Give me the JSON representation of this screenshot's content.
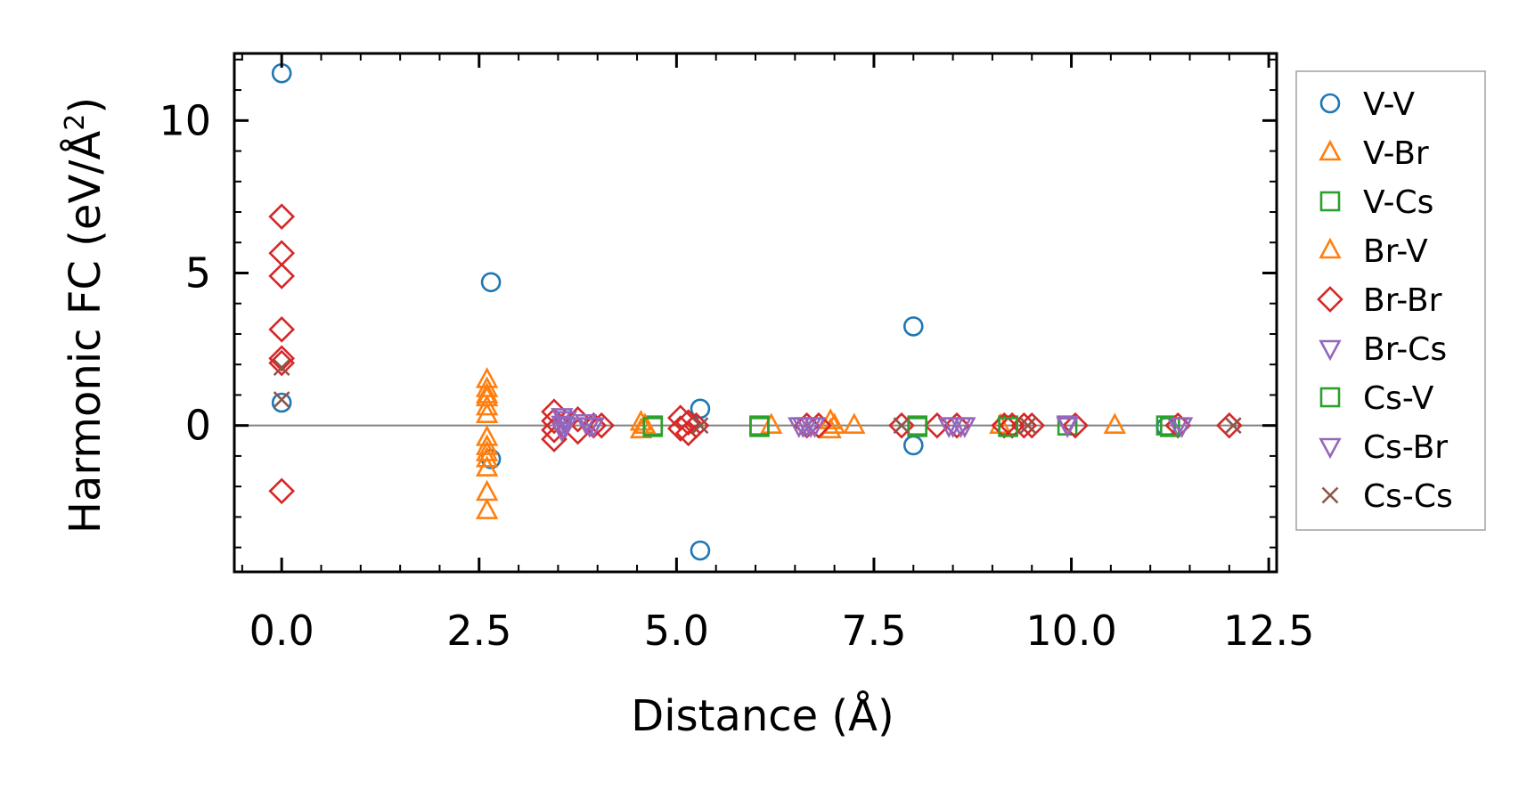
{
  "chart_data": {
    "type": "scatter",
    "title": "",
    "xlabel": "Distance (Å)",
    "ylabel_main": "Harmonic FC (eV/Å",
    "ylabel_sup": "2",
    "ylabel_close": ")",
    "xlim": [
      -0.6,
      12.6
    ],
    "ylim": [
      -4.8,
      12.2
    ],
    "xticks": [
      0.0,
      2.5,
      5.0,
      7.5,
      10.0,
      12.5
    ],
    "xtick_labels": [
      "0.0",
      "2.5",
      "5.0",
      "7.5",
      "10.0",
      "12.5"
    ],
    "yticks": [
      0,
      5,
      10
    ],
    "ytick_labels": [
      "0",
      "5",
      "10"
    ],
    "legend_position": "right-outside",
    "series": [
      {
        "name": "V-V",
        "marker": "circle",
        "color": "#1f77b4",
        "filled": false,
        "points": [
          [
            0.0,
            11.55
          ],
          [
            0.0,
            0.75
          ],
          [
            2.65,
            4.7
          ],
          [
            2.65,
            -1.1
          ],
          [
            5.3,
            0.55
          ],
          [
            5.3,
            -4.1
          ],
          [
            8.0,
            3.25
          ],
          [
            8.0,
            -0.65
          ],
          [
            11.2,
            -0.05
          ]
        ]
      },
      {
        "name": "V-Br",
        "marker": "triangle-up",
        "color": "#ff7f0e",
        "filled": false,
        "points": [
          [
            2.6,
            1.5
          ],
          [
            2.6,
            1.2
          ],
          [
            2.6,
            0.9
          ],
          [
            2.6,
            0.6
          ],
          [
            2.6,
            0.35
          ],
          [
            2.6,
            -0.4
          ],
          [
            2.6,
            -0.9
          ],
          [
            2.6,
            -1.1
          ],
          [
            2.6,
            -1.4
          ],
          [
            2.6,
            -2.2
          ],
          [
            2.6,
            -2.8
          ],
          [
            4.55,
            0.1
          ],
          [
            4.55,
            -0.15
          ],
          [
            6.2,
            0.0
          ],
          [
            6.95,
            0.15
          ],
          [
            6.95,
            -0.15
          ],
          [
            7.25,
            0.0
          ],
          [
            9.1,
            0.0
          ],
          [
            10.55,
            0.0
          ]
        ]
      },
      {
        "name": "V-Cs",
        "marker": "square",
        "color": "#2ca02c",
        "filled": false,
        "points": [
          [
            4.7,
            0.0
          ],
          [
            6.05,
            0.0
          ],
          [
            8.05,
            0.0
          ],
          [
            9.2,
            0.0
          ],
          [
            9.95,
            0.0
          ],
          [
            11.2,
            0.0
          ]
        ]
      },
      {
        "name": "Br-V",
        "marker": "triangle-up",
        "color": "#ff7f0e",
        "filled": false,
        "points": [
          [
            2.6,
            1.0
          ],
          [
            2.6,
            -0.7
          ],
          [
            4.6,
            0.0
          ],
          [
            7.0,
            0.0
          ]
        ]
      },
      {
        "name": "Br-Br",
        "marker": "diamond",
        "color": "#d62728",
        "filled": false,
        "points": [
          [
            0.0,
            6.85
          ],
          [
            0.0,
            5.65
          ],
          [
            0.0,
            4.9
          ],
          [
            0.0,
            3.15
          ],
          [
            0.0,
            2.2
          ],
          [
            0.0,
            2.05
          ],
          [
            0.0,
            -2.15
          ],
          [
            3.45,
            0.45
          ],
          [
            3.45,
            0.15
          ],
          [
            3.45,
            -0.15
          ],
          [
            3.45,
            -0.45
          ],
          [
            3.75,
            0.2
          ],
          [
            3.75,
            -0.2
          ],
          [
            3.95,
            0.0
          ],
          [
            4.05,
            0.0
          ],
          [
            5.05,
            0.25
          ],
          [
            5.05,
            -0.1
          ],
          [
            5.15,
            0.1
          ],
          [
            5.15,
            -0.25
          ],
          [
            5.25,
            0.0
          ],
          [
            6.65,
            0.0
          ],
          [
            6.8,
            0.0
          ],
          [
            7.85,
            0.0
          ],
          [
            8.3,
            0.0
          ],
          [
            8.55,
            0.0
          ],
          [
            9.15,
            0.0
          ],
          [
            9.25,
            0.0
          ],
          [
            9.4,
            0.0
          ],
          [
            9.5,
            0.0
          ],
          [
            10.05,
            0.0
          ],
          [
            11.35,
            0.0
          ],
          [
            12.0,
            0.0
          ]
        ]
      },
      {
        "name": "Br-Cs",
        "marker": "triangle-down",
        "color": "#9467bd",
        "filled": false,
        "points": [
          [
            3.55,
            0.3
          ],
          [
            3.55,
            0.05
          ],
          [
            3.55,
            -0.15
          ],
          [
            3.85,
            0.1
          ],
          [
            3.95,
            0.0
          ],
          [
            6.55,
            0.0
          ],
          [
            6.65,
            0.0
          ],
          [
            6.75,
            0.0
          ],
          [
            8.45,
            0.0
          ],
          [
            8.65,
            0.0
          ],
          [
            9.95,
            0.05
          ],
          [
            11.35,
            0.0
          ]
        ]
      },
      {
        "name": "Cs-V",
        "marker": "square",
        "color": "#2ca02c",
        "filled": false,
        "points": [
          [
            4.7,
            -0.05
          ],
          [
            6.05,
            -0.05
          ],
          [
            8.05,
            -0.05
          ],
          [
            9.2,
            -0.05
          ],
          [
            11.25,
            -0.05
          ]
        ]
      },
      {
        "name": "Cs-Br",
        "marker": "triangle-down",
        "color": "#9467bd",
        "filled": false,
        "points": [
          [
            3.6,
            0.2
          ],
          [
            3.6,
            0.0
          ],
          [
            3.9,
            0.0
          ],
          [
            6.6,
            0.0
          ],
          [
            6.7,
            0.0
          ],
          [
            8.5,
            0.0
          ],
          [
            8.6,
            0.0
          ],
          [
            9.95,
            0.0
          ],
          [
            11.4,
            0.0
          ]
        ]
      },
      {
        "name": "Cs-Cs",
        "marker": "x",
        "color": "#8c564b",
        "filled": false,
        "points": [
          [
            0.0,
            1.9
          ],
          [
            0.0,
            0.85
          ],
          [
            5.3,
            0.0
          ],
          [
            7.85,
            0.0
          ],
          [
            9.45,
            0.0
          ],
          [
            12.05,
            0.0
          ]
        ]
      }
    ],
    "hline": {
      "y": 0,
      "color": "#808080"
    }
  }
}
